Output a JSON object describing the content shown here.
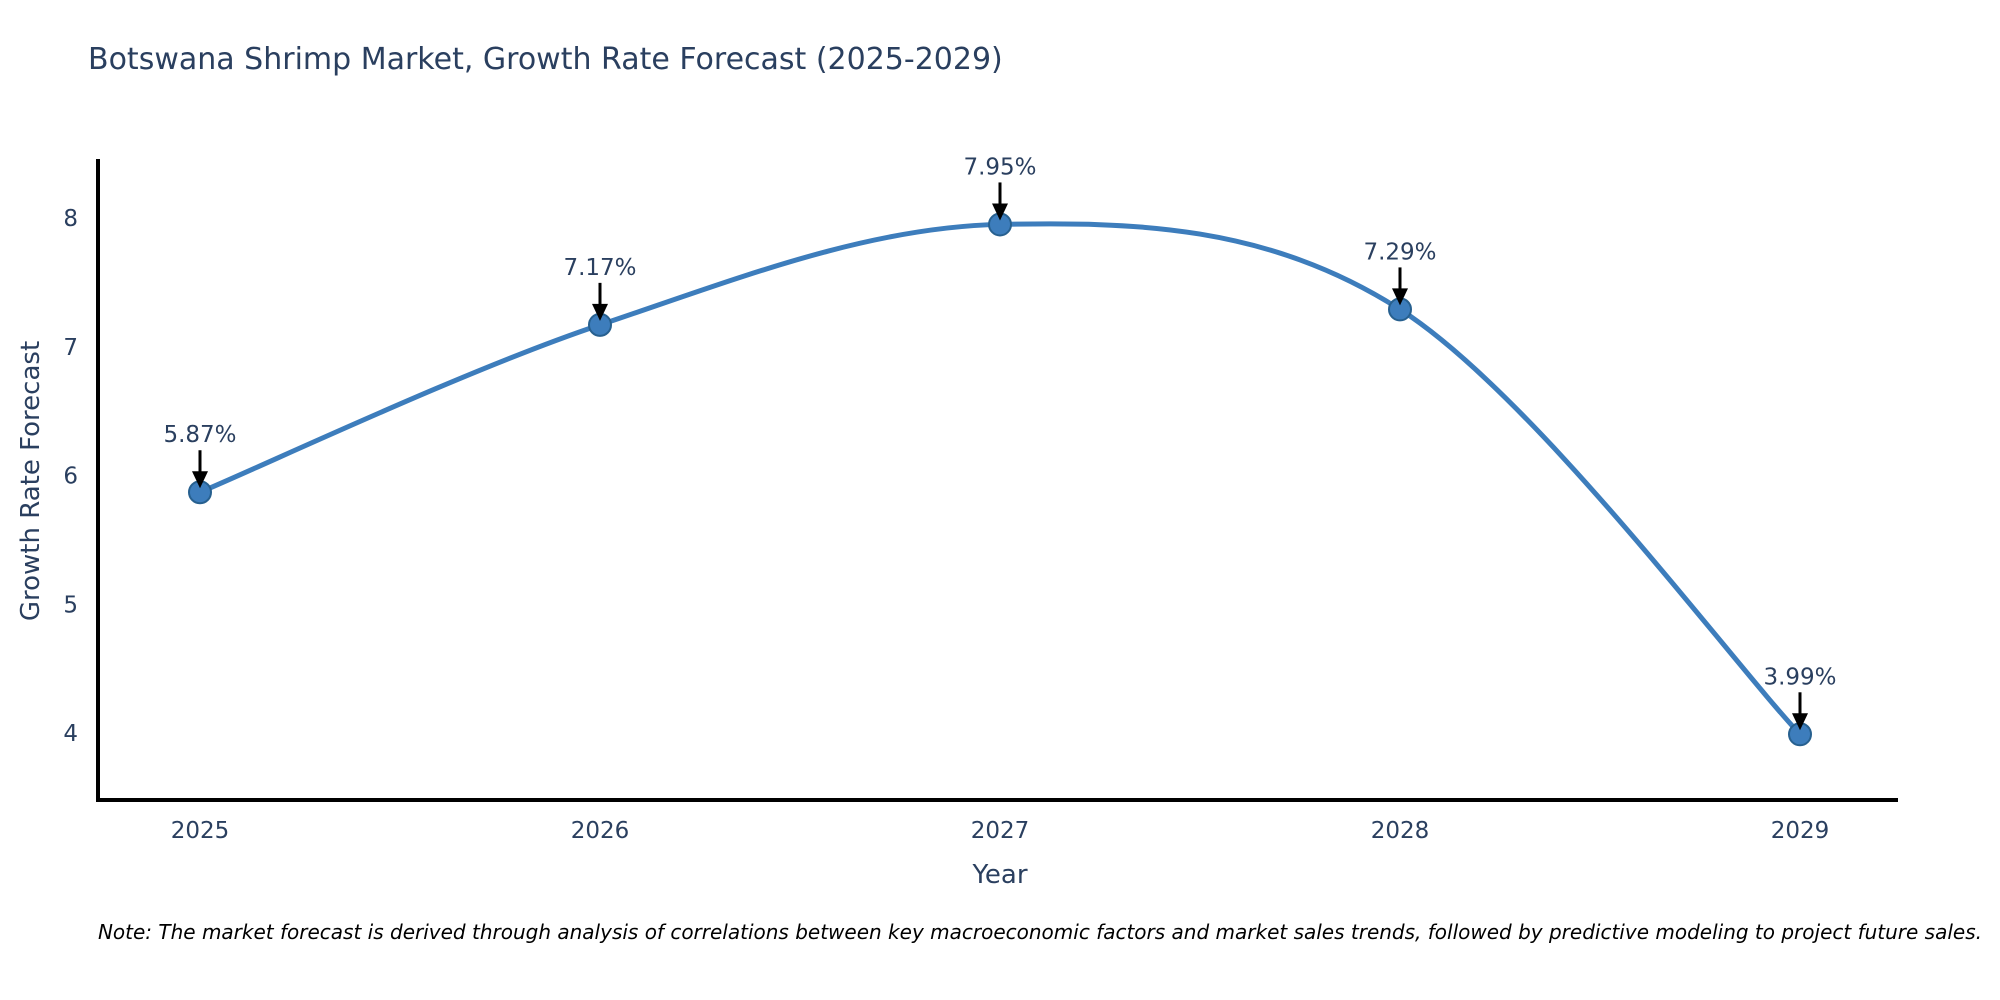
{
  "title": "Botswana Shrimp Market, Growth Rate Forecast (2025-2029)",
  "note": "Note: The market forecast is derived through analysis of correlations between key macroeconomic factors and market sales trends, followed by predictive modeling to project future sales.",
  "colors": {
    "title_text": "#2a3f5f",
    "axis_text": "#2a3f5f",
    "axis_line": "#000000",
    "annotation_text": "#2a3f5f",
    "arrow": "#000000",
    "note_text": "#000000",
    "line": "#3d7dbc",
    "marker_fill": "#3d7dbc",
    "marker_edge": "#27608f"
  },
  "chart_data": {
    "type": "line",
    "title": "Botswana Shrimp Market, Growth Rate Forecast (2025-2029)",
    "xlabel": "Year",
    "ylabel": "Growth Rate Forecast",
    "x": [
      2025,
      2026,
      2027,
      2028,
      2029
    ],
    "y": [
      5.87,
      7.17,
      7.95,
      7.29,
      3.99
    ],
    "point_labels": [
      "5.87%",
      "7.17%",
      "7.95%",
      "7.29%",
      "3.99%"
    ],
    "xticks": [
      "2025",
      "2026",
      "2027",
      "2028",
      "2029"
    ],
    "yticks": [
      4,
      5,
      6,
      7,
      8
    ],
    "xlim": [
      2024.74,
      2029.25
    ],
    "ylim": [
      3.48,
      8.46
    ],
    "grid": false,
    "legend": false,
    "line_shape": "spline",
    "line_color": "#3d7dbc",
    "marker_color": "#3d7dbc"
  }
}
